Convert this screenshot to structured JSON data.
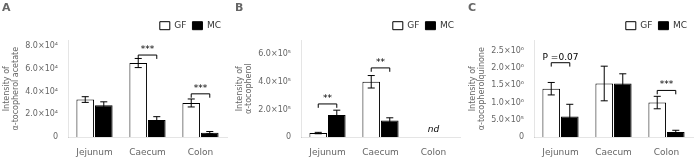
{
  "chart_data": [
    {
      "type": "bar",
      "title": "A",
      "ylabel": "Intensity of\nα-tocopherol acetate",
      "categories": [
        "Jejunum",
        "Caecum",
        "Colon"
      ],
      "series": [
        {
          "name": "GF",
          "color": "white",
          "values": [
            33000,
            65000,
            30000
          ],
          "errors": [
            2500,
            4000,
            3500
          ]
        },
        {
          "name": "MC",
          "color": "black",
          "values": [
            28000,
            15000,
            4000
          ],
          "errors": [
            3000,
            3000,
            1000
          ]
        }
      ],
      "ylim": [
        0,
        85000
      ],
      "yticks": [
        0,
        {
          "value": 20000,
          "label": "2.0×10⁴"
        },
        {
          "value": 40000,
          "label": "4.0×10⁴"
        },
        {
          "value": 60000,
          "label": "6.0×10⁴"
        },
        {
          "value": 80000,
          "label": "8.0×10⁴"
        }
      ],
      "brackets": [
        {
          "category": "Caecum",
          "y": 72000,
          "label": "***"
        },
        {
          "category": "Colon",
          "y": 38000,
          "label": "***"
        }
      ],
      "annotations": [],
      "grid": false,
      "legend": "upper right"
    },
    {
      "type": "bar",
      "title": "B",
      "ylabel": "Intensity of\nα-tocopherol",
      "categories": [
        "Jejunum",
        "Caecum",
        "Colon"
      ],
      "series": [
        {
          "name": "GF",
          "color": "white",
          "values": [
            30000,
            400000,
            0
          ],
          "errors": [
            5000,
            45000,
            0
          ]
        },
        {
          "name": "MC",
          "color": "black",
          "values": [
            160000,
            120000,
            0
          ],
          "errors": [
            35000,
            20000,
            0
          ]
        }
      ],
      "ylim": [
        0,
        700000
      ],
      "yticks": [
        0,
        {
          "value": 200000,
          "label": "2.0×10⁵"
        },
        {
          "value": 400000,
          "label": "4.0×10⁵"
        },
        {
          "value": 600000,
          "label": "6.0×10⁵"
        }
      ],
      "brackets": [
        {
          "category": "Jejunum",
          "y": 240000,
          "label": "**"
        },
        {
          "category": "Caecum",
          "y": 500000,
          "label": "**"
        }
      ],
      "annotations": [
        {
          "text": "nd",
          "category": "Colon"
        }
      ],
      "grid": false,
      "legend": "upper right"
    },
    {
      "type": "bar",
      "title": "C",
      "ylabel": "Intensity of\nα-tocopherolquinone",
      "categories": [
        "Jejunum",
        "Caecum",
        "Colon"
      ],
      "series": [
        {
          "name": "GF",
          "color": "white",
          "values": [
            1400000,
            1550000,
            1000000
          ],
          "errors": [
            180000,
            500000,
            180000
          ]
        },
        {
          "name": "MC",
          "color": "black",
          "values": [
            600000,
            1550000,
            150000
          ],
          "errors": [
            350000,
            280000,
            50000
          ]
        }
      ],
      "ylim": [
        0,
        2800000
      ],
      "yticks": [
        0,
        {
          "value": 500000,
          "label": "5.0×10⁵"
        },
        {
          "value": 1000000,
          "label": "1.0×10⁶"
        },
        {
          "value": 1500000,
          "label": "1.5×10⁶"
        },
        {
          "value": 2000000,
          "label": "2.0×10⁶"
        },
        {
          "value": 2500000,
          "label": "2.5×10⁶"
        }
      ],
      "brackets": [
        {
          "category": "Jejunum",
          "y": 2150000,
          "label": "P =0.07"
        },
        {
          "category": "Colon",
          "y": 1350000,
          "label": "***"
        }
      ],
      "annotations": [],
      "grid": false,
      "legend": "upper right"
    }
  ]
}
